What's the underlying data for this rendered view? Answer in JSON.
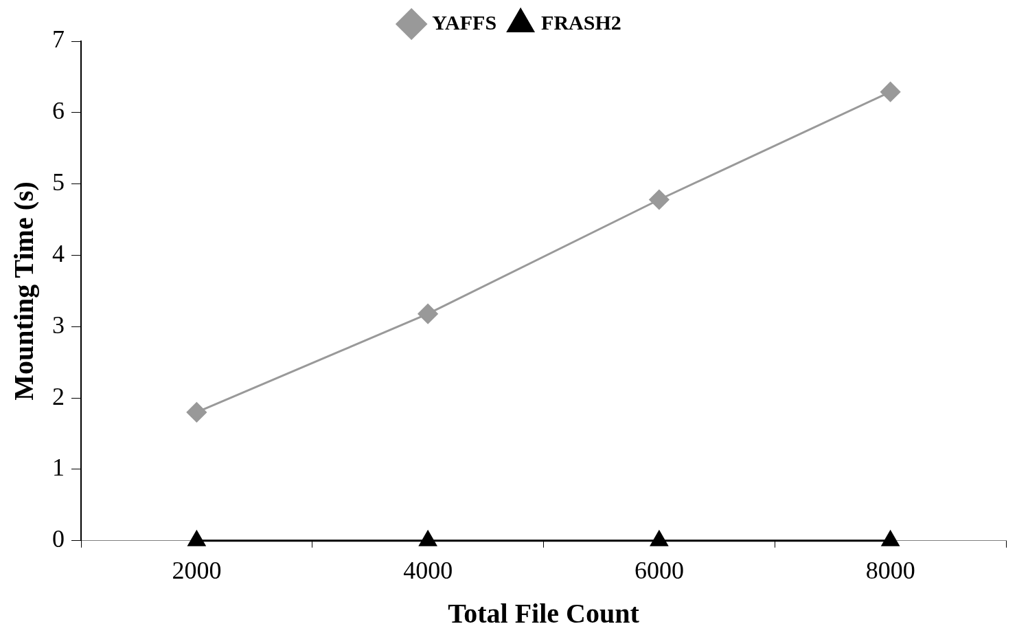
{
  "chart_data": {
    "type": "line",
    "xlabel": "Total File Count",
    "ylabel": "Mounting Time (s)",
    "categories": [
      "2000",
      "4000",
      "6000",
      "8000"
    ],
    "series": [
      {
        "name": "YAFFS",
        "color": "#999999",
        "marker": "diamond",
        "values": [
          1.8,
          3.18,
          4.78,
          6.29
        ]
      },
      {
        "name": "FRASH2",
        "color": "#000000",
        "marker": "triangle",
        "values": [
          0,
          0,
          0,
          0
        ]
      }
    ],
    "ylim": [
      0,
      7
    ],
    "yticks": [
      0,
      1,
      2,
      3,
      4,
      5,
      6,
      7
    ],
    "grid": false,
    "legend": "top",
    "line_style": "solid"
  }
}
